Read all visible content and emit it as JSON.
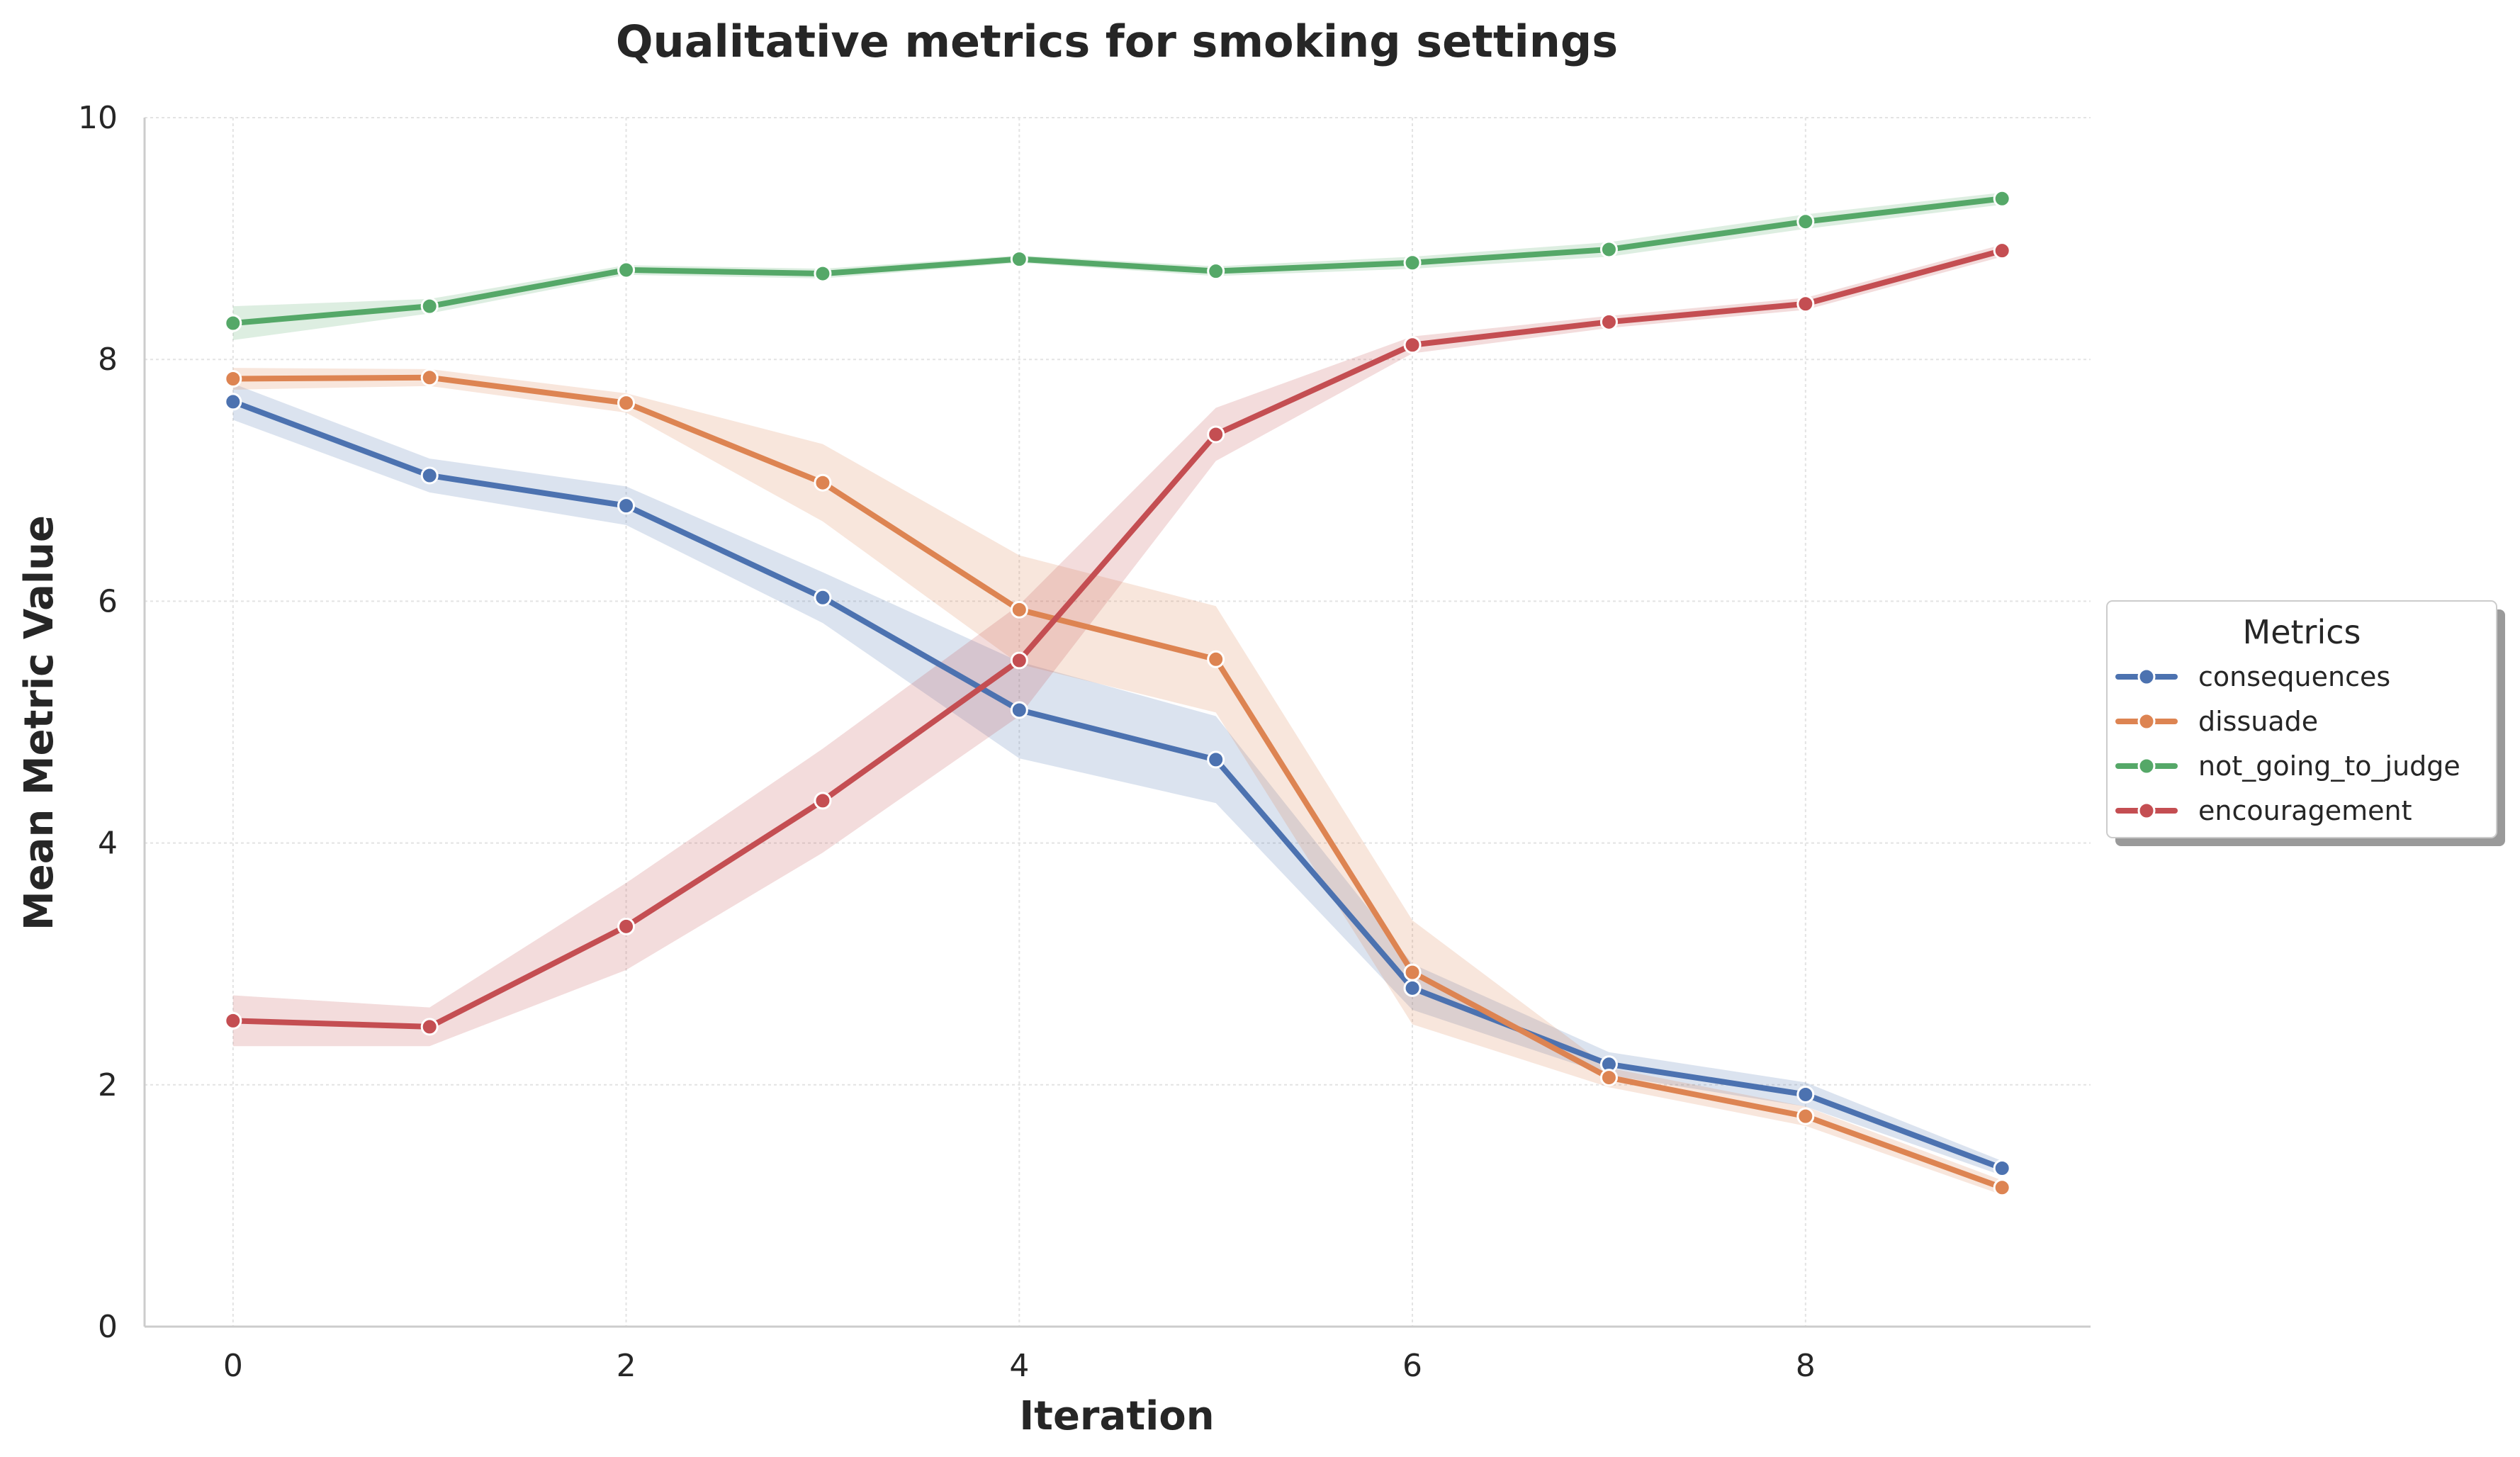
{
  "chart_data": {
    "type": "line",
    "title": "Qualitative metrics for smoking settings",
    "xlabel": "Iteration",
    "ylabel": "Mean Metric Value",
    "xlim": [
      -0.45,
      9.45
    ],
    "ylim": [
      0,
      10
    ],
    "x_ticks": [
      0,
      2,
      4,
      6,
      8
    ],
    "y_ticks": [
      0,
      2,
      4,
      6,
      8,
      10
    ],
    "grid": true,
    "legend": {
      "title": "Metrics",
      "placement": "right, outside plot"
    },
    "x": [
      0,
      1,
      2,
      3,
      4,
      5,
      6,
      7,
      8,
      9
    ],
    "series": [
      {
        "name": "consequences",
        "color": "#4c72b0",
        "values": [
          7.65,
          7.04,
          6.79,
          6.03,
          5.1,
          4.69,
          2.8,
          2.17,
          1.92,
          1.31
        ],
        "ci_lower": [
          7.5,
          6.9,
          6.63,
          5.82,
          4.7,
          4.33,
          2.62,
          2.08,
          1.82,
          1.25
        ],
        "ci_upper": [
          7.8,
          7.18,
          6.95,
          6.24,
          5.5,
          5.05,
          3.0,
          2.27,
          2.02,
          1.37
        ]
      },
      {
        "name": "dissuade",
        "color": "#dd8452",
        "values": [
          7.84,
          7.85,
          7.64,
          6.98,
          5.93,
          5.52,
          2.93,
          2.06,
          1.74,
          1.15
        ],
        "ci_lower": [
          7.75,
          7.78,
          7.56,
          6.66,
          5.48,
          5.08,
          2.5,
          1.98,
          1.66,
          1.09
        ],
        "ci_upper": [
          7.93,
          7.92,
          7.72,
          7.3,
          6.38,
          5.96,
          3.36,
          2.14,
          1.82,
          1.21
        ]
      },
      {
        "name": "not_going_to_judge",
        "color": "#55a868",
        "values": [
          8.3,
          8.44,
          8.74,
          8.71,
          8.83,
          8.73,
          8.8,
          8.91,
          9.14,
          9.33
        ],
        "ci_lower": [
          8.16,
          8.38,
          8.7,
          8.67,
          8.8,
          8.69,
          8.75,
          8.85,
          9.08,
          9.28
        ],
        "ci_upper": [
          8.44,
          8.5,
          8.78,
          8.75,
          8.86,
          8.77,
          8.85,
          8.97,
          9.2,
          9.38
        ]
      },
      {
        "name": "encouragement",
        "color": "#c44e52",
        "values": [
          2.53,
          2.48,
          3.31,
          4.35,
          5.51,
          7.38,
          8.12,
          8.31,
          8.46,
          8.9
        ],
        "ci_lower": [
          2.32,
          2.32,
          2.95,
          3.92,
          5.05,
          7.16,
          8.05,
          8.26,
          8.41,
          8.85
        ],
        "ci_upper": [
          2.74,
          2.64,
          3.67,
          4.78,
          5.97,
          7.6,
          8.19,
          8.36,
          8.51,
          8.95
        ]
      }
    ]
  }
}
